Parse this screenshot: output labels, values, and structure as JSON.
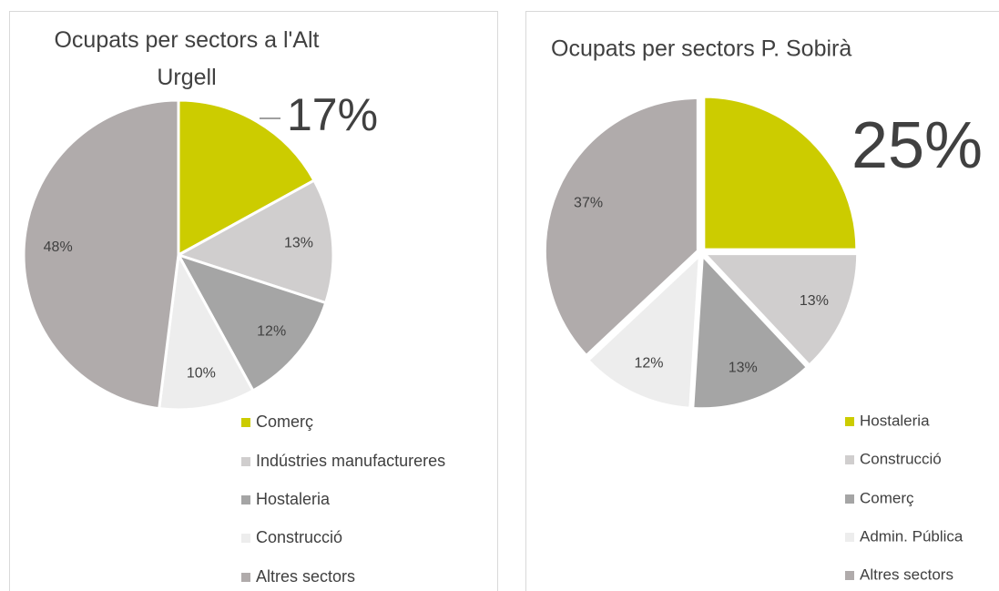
{
  "chart_data": [
    {
      "type": "pie",
      "title": "Ocupats per sectors a l'Alt Urgell",
      "categories": [
        "Comerç",
        "Indústries manufactureres",
        "Hostaleria",
        "Construcció",
        "Altres sectors"
      ],
      "values": [
        17,
        13,
        12,
        10,
        48
      ],
      "value_labels": [
        "17%",
        "13%",
        "12%",
        "10%",
        "48%"
      ],
      "colors": [
        "#cccc00",
        "#d0cece",
        "#a5a5a5",
        "#ededed",
        "#b0abab"
      ]
    },
    {
      "type": "pie",
      "title": "Ocupats per sectors P. Sobirà",
      "categories": [
        "Hostaleria",
        "Construcció",
        "Comerç",
        "Admin. Pública",
        "Altres sectors"
      ],
      "values": [
        25,
        13,
        13,
        12,
        37
      ],
      "value_labels": [
        "25%",
        "13%",
        "13%",
        "12%",
        "37%"
      ],
      "colors": [
        "#cccc00",
        "#d0cece",
        "#a5a5a5",
        "#ededed",
        "#b0abab"
      ]
    }
  ]
}
